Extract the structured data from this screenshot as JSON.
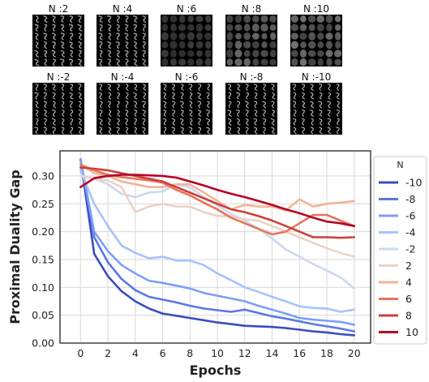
{
  "thumbnails": {
    "top_row": [
      {
        "label": "N :2",
        "brightness": 0.55,
        "blur": 0.3
      },
      {
        "label": "N :4",
        "brightness": 0.45,
        "blur": 0.5
      },
      {
        "label": "N :6",
        "brightness": 0.25,
        "blur": 0.8
      },
      {
        "label": "N :8",
        "brightness": 0.55,
        "blur": 1.0
      },
      {
        "label": "N :10",
        "brightness": 0.6,
        "blur": 1.0
      }
    ],
    "bottom_row": [
      {
        "label": "N :-2",
        "brightness": 0.7,
        "blur": 0.0
      },
      {
        "label": "N :-4",
        "brightness": 0.7,
        "blur": 0.0
      },
      {
        "label": "N :-6",
        "brightness": 0.7,
        "blur": 0.0
      },
      {
        "label": "N :-8",
        "brightness": 0.7,
        "blur": 0.0
      },
      {
        "label": "N :-10",
        "brightness": 0.7,
        "blur": 0.0
      }
    ]
  },
  "chart_data": {
    "type": "line",
    "title": "",
    "xlabel": "Epochs",
    "ylabel": "Proximal Duality Gap",
    "xlim": [
      -1.5,
      21.2
    ],
    "ylim": [
      0.0,
      0.345
    ],
    "xticks": [
      0,
      2,
      4,
      6,
      8,
      10,
      12,
      14,
      16,
      18,
      20
    ],
    "yticks": [
      0.0,
      0.05,
      0.1,
      0.15,
      0.2,
      0.25,
      0.3
    ],
    "ytick_labels": [
      "0.00",
      "0.05",
      "0.10",
      "0.15",
      "0.20",
      "0.25",
      "0.30"
    ],
    "grid": true,
    "legend_title": "N",
    "legend_position": "right-outside",
    "x": [
      0,
      1,
      2,
      3,
      4,
      5,
      6,
      7,
      8,
      9,
      10,
      11,
      12,
      13,
      14,
      15,
      16,
      17,
      18,
      19,
      20
    ],
    "series": [
      {
        "name": "-10",
        "color": "#3b4cc0",
        "values": [
          0.33,
          0.16,
          0.12,
          0.093,
          0.075,
          0.062,
          0.053,
          0.049,
          0.045,
          0.041,
          0.037,
          0.034,
          0.031,
          0.03,
          0.029,
          0.027,
          0.024,
          0.021,
          0.019,
          0.016,
          0.014
        ]
      },
      {
        "name": "-8",
        "color": "#5a78e4",
        "values": [
          0.33,
          0.19,
          0.145,
          0.115,
          0.095,
          0.083,
          0.078,
          0.073,
          0.067,
          0.062,
          0.059,
          0.056,
          0.06,
          0.054,
          0.048,
          0.044,
          0.039,
          0.034,
          0.03,
          0.026,
          0.021
        ]
      },
      {
        "name": "-6",
        "color": "#7b9ff9",
        "values": [
          0.33,
          0.2,
          0.165,
          0.14,
          0.125,
          0.112,
          0.108,
          0.103,
          0.098,
          0.09,
          0.085,
          0.08,
          0.075,
          0.067,
          0.06,
          0.053,
          0.045,
          0.042,
          0.04,
          0.038,
          0.033
        ]
      },
      {
        "name": "-4",
        "color": "#a5c3fe",
        "values": [
          0.31,
          0.25,
          0.21,
          0.175,
          0.162,
          0.152,
          0.155,
          0.148,
          0.148,
          0.14,
          0.125,
          0.113,
          0.1,
          0.092,
          0.083,
          0.075,
          0.066,
          0.063,
          0.062,
          0.056,
          0.06
        ]
      },
      {
        "name": "-2",
        "color": "#cbd8ee",
        "values": [
          0.3,
          0.295,
          0.285,
          0.268,
          0.262,
          0.27,
          0.272,
          0.285,
          0.28,
          0.262,
          0.247,
          0.232,
          0.22,
          0.205,
          0.188,
          0.168,
          0.155,
          0.142,
          0.13,
          0.118,
          0.098
        ]
      },
      {
        "name": "2",
        "color": "#ecd3c5",
        "values": [
          0.3,
          0.295,
          0.292,
          0.28,
          0.235,
          0.245,
          0.25,
          0.245,
          0.245,
          0.235,
          0.228,
          0.228,
          0.222,
          0.22,
          0.21,
          0.2,
          0.19,
          0.18,
          0.17,
          0.162,
          0.155
        ]
      },
      {
        "name": "4",
        "color": "#f5b396",
        "values": [
          0.32,
          0.305,
          0.3,
          0.29,
          0.285,
          0.28,
          0.28,
          0.285,
          0.285,
          0.27,
          0.255,
          0.24,
          0.248,
          0.245,
          0.245,
          0.238,
          0.258,
          0.245,
          0.25,
          0.252,
          0.255
        ]
      },
      {
        "name": "6",
        "color": "#e7745b",
        "values": [
          0.32,
          0.31,
          0.302,
          0.298,
          0.295,
          0.292,
          0.288,
          0.275,
          0.265,
          0.252,
          0.24,
          0.225,
          0.215,
          0.205,
          0.195,
          0.2,
          0.215,
          0.23,
          0.23,
          0.22,
          0.21
        ]
      },
      {
        "name": "8",
        "color": "#cc403a",
        "values": [
          0.315,
          0.313,
          0.31,
          0.305,
          0.3,
          0.295,
          0.29,
          0.28,
          0.27,
          0.26,
          0.25,
          0.24,
          0.235,
          0.228,
          0.22,
          0.21,
          0.2,
          0.19,
          0.19,
          0.189,
          0.19
        ]
      },
      {
        "name": "10",
        "color": "#b40426",
        "values": [
          0.28,
          0.296,
          0.3,
          0.302,
          0.302,
          0.301,
          0.3,
          0.297,
          0.29,
          0.283,
          0.275,
          0.268,
          0.262,
          0.255,
          0.248,
          0.24,
          0.233,
          0.225,
          0.218,
          0.215,
          0.21
        ]
      }
    ]
  }
}
